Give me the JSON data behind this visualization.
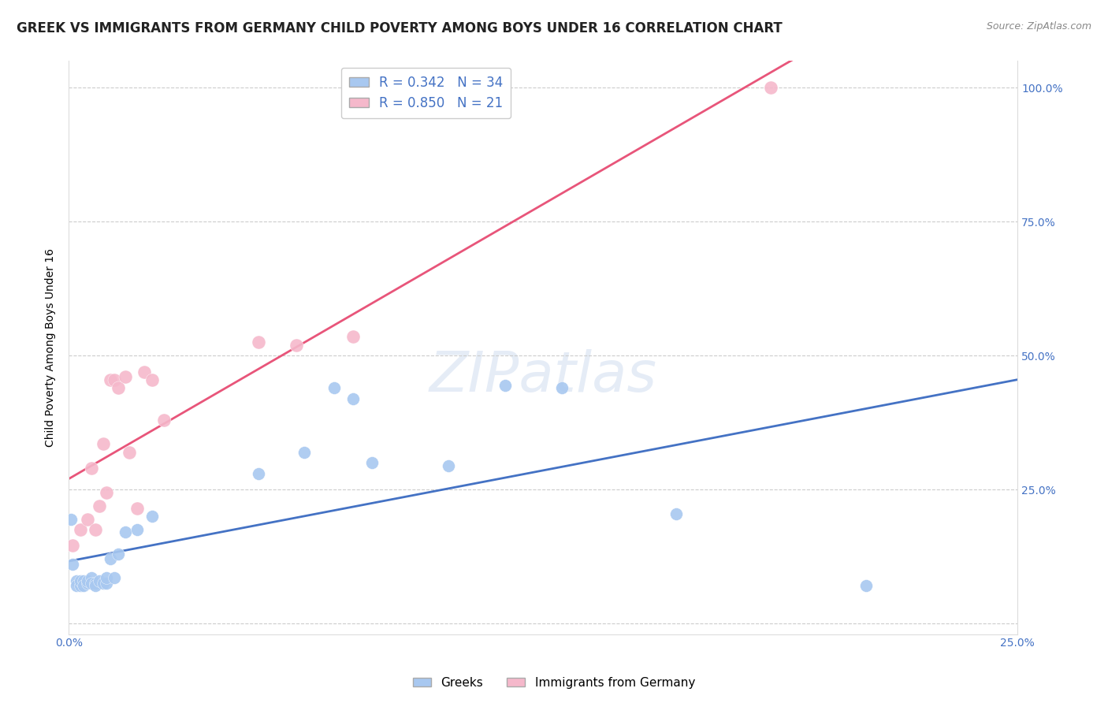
{
  "title": "GREEK VS IMMIGRANTS FROM GERMANY CHILD POVERTY AMONG BOYS UNDER 16 CORRELATION CHART",
  "source": "Source: ZipAtlas.com",
  "ylabel": "Child Poverty Among Boys Under 16",
  "xlim": [
    0.0,
    0.25
  ],
  "ylim": [
    -0.02,
    1.05
  ],
  "ytick_values": [
    0.0,
    0.25,
    0.5,
    0.75,
    1.0
  ],
  "ytick_labels": [
    "",
    "25.0%",
    "50.0%",
    "75.0%",
    "100.0%"
  ],
  "xtick_values": [
    0.0,
    0.05,
    0.1,
    0.15,
    0.2,
    0.25
  ],
  "xtick_labels": [
    "0.0%",
    "",
    "",
    "",
    "",
    "25.0%"
  ],
  "greeks_R": 0.342,
  "greeks_N": 34,
  "immigrants_R": 0.85,
  "immigrants_N": 21,
  "greeks_color": "#a8c8f0",
  "immigrants_color": "#f5b8cb",
  "greeks_line_color": "#4472c4",
  "immigrants_line_color": "#e8557a",
  "watermark": "ZIPatlas",
  "title_fontsize": 12,
  "label_fontsize": 10,
  "tick_fontsize": 10,
  "greeks_x": [
    0.0005,
    0.001,
    0.002,
    0.002,
    0.003,
    0.003,
    0.004,
    0.004,
    0.005,
    0.005,
    0.006,
    0.006,
    0.007,
    0.007,
    0.008,
    0.009,
    0.01,
    0.01,
    0.011,
    0.012,
    0.013,
    0.015,
    0.018,
    0.022,
    0.05,
    0.062,
    0.07,
    0.075,
    0.08,
    0.1,
    0.115,
    0.13,
    0.16,
    0.21
  ],
  "greeks_y": [
    0.195,
    0.11,
    0.08,
    0.07,
    0.07,
    0.08,
    0.08,
    0.07,
    0.075,
    0.08,
    0.085,
    0.075,
    0.075,
    0.07,
    0.08,
    0.075,
    0.075,
    0.085,
    0.12,
    0.085,
    0.13,
    0.17,
    0.175,
    0.2,
    0.28,
    0.32,
    0.44,
    0.42,
    0.3,
    0.295,
    0.445,
    0.44,
    0.205,
    0.07
  ],
  "immigrants_x": [
    0.001,
    0.003,
    0.005,
    0.006,
    0.007,
    0.008,
    0.009,
    0.01,
    0.011,
    0.012,
    0.013,
    0.015,
    0.016,
    0.018,
    0.02,
    0.022,
    0.025,
    0.05,
    0.06,
    0.075,
    0.185
  ],
  "immigrants_y": [
    0.145,
    0.175,
    0.195,
    0.29,
    0.175,
    0.22,
    0.335,
    0.245,
    0.455,
    0.455,
    0.44,
    0.46,
    0.32,
    0.215,
    0.47,
    0.455,
    0.38,
    0.525,
    0.52,
    0.535,
    1.0
  ]
}
